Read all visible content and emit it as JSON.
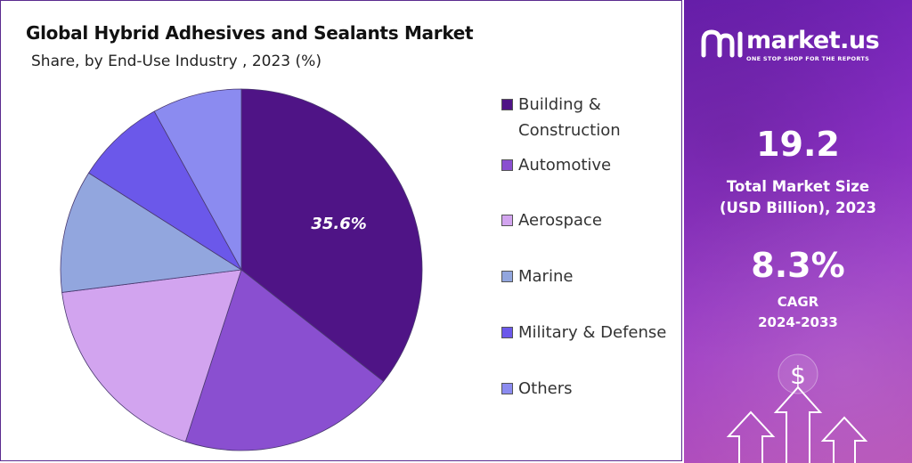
{
  "chart_data": {
    "type": "pie",
    "title": "Global Hybrid Adhesives and Sealants Market",
    "subtitle": "Share, by End-Use Industry , 2023 (%)",
    "slices": [
      {
        "name": "Building &\nConstruction",
        "value": 35.6,
        "color": "#4f1486",
        "label": "35.6%"
      },
      {
        "name": "Automotive",
        "value": 19.4,
        "color": "#8a4fd0",
        "label": ""
      },
      {
        "name": "Aerospace",
        "value": 18.0,
        "color": "#d2a4ef",
        "label": ""
      },
      {
        "name": "Marine",
        "value": 11.0,
        "color": "#92a6de",
        "label": ""
      },
      {
        "name": "Military & Defense",
        "value": 8.0,
        "color": "#6b58ea",
        "label": ""
      },
      {
        "name": "Others",
        "value": 8.0,
        "color": "#8b8bf0",
        "label": ""
      }
    ],
    "legend_position": "right"
  },
  "sidebar": {
    "brand": "market.us",
    "tagline": "ONE STOP SHOP FOR THE REPORTS",
    "market_size_value": "19.2",
    "market_size_label_1": "Total Market Size",
    "market_size_label_2": "(USD Billion), 2023",
    "cagr_value": "8.3%",
    "cagr_label_1": "CAGR",
    "cagr_label_2": "2024-2033",
    "currency_symbol": "$"
  }
}
